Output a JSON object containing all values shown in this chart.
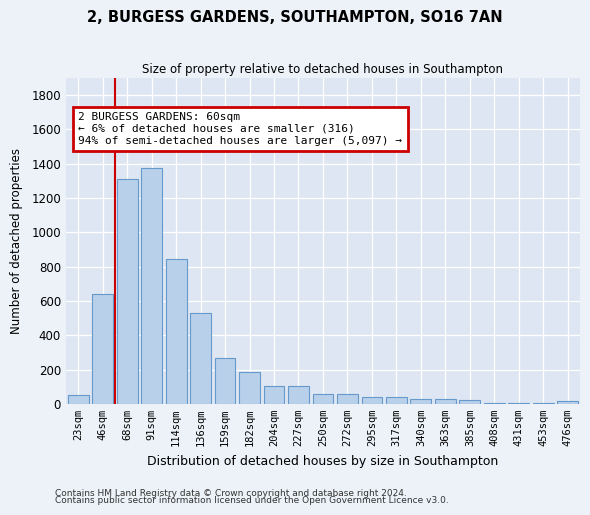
{
  "title": "2, BURGESS GARDENS, SOUTHAMPTON, SO16 7AN",
  "subtitle": "Size of property relative to detached houses in Southampton",
  "xlabel": "Distribution of detached houses by size in Southampton",
  "ylabel": "Number of detached properties",
  "bar_color": "#b8d0ea",
  "bar_edge_color": "#6699cc",
  "categories": [
    "23sqm",
    "46sqm",
    "68sqm",
    "91sqm",
    "114sqm",
    "136sqm",
    "159sqm",
    "182sqm",
    "204sqm",
    "227sqm",
    "250sqm",
    "272sqm",
    "295sqm",
    "317sqm",
    "340sqm",
    "363sqm",
    "385sqm",
    "408sqm",
    "431sqm",
    "453sqm",
    "476sqm"
  ],
  "values": [
    50,
    640,
    1310,
    1375,
    845,
    530,
    270,
    185,
    105,
    105,
    57,
    57,
    38,
    38,
    30,
    30,
    20,
    7,
    7,
    7,
    15
  ],
  "ylim": [
    0,
    1900
  ],
  "yticks": [
    0,
    200,
    400,
    600,
    800,
    1000,
    1200,
    1400,
    1600,
    1800
  ],
  "vline_pos": 1.5,
  "annotation_text": "2 BURGESS GARDENS: 60sqm\n← 6% of detached houses are smaller (316)\n94% of semi-detached houses are larger (5,097) →",
  "annotation_box_color": "#ffffff",
  "annotation_box_edge": "#cc0000",
  "vline_color": "#cc0000",
  "footnote1": "Contains HM Land Registry data © Crown copyright and database right 2024.",
  "footnote2": "Contains public sector information licensed under the Open Government Licence v3.0.",
  "bg_color": "#edf2f8",
  "plot_bg_color": "#dde6f2"
}
